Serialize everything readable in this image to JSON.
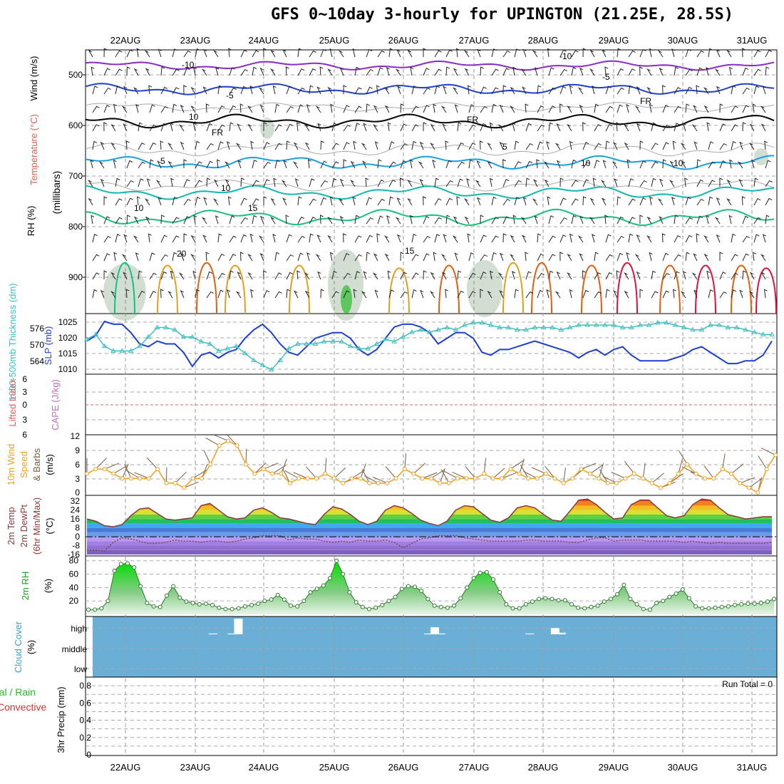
{
  "title": "GFS 0~10day 3-hourly for UPINGTON (21.25E, 28.5S)",
  "dates": [
    "22AUG",
    "23AUG",
    "24AUG",
    "25AUG",
    "26AUG",
    "27AUG",
    "28AUG",
    "29AUG",
    "30AUG",
    "31AUG"
  ],
  "colors": {
    "temp_minus10": "#8a2bc8",
    "temp_minus5": "#2040d0",
    "freezing": "#000000",
    "temp_5": "#1aa0e0",
    "temp_10": "#12b8b0",
    "temp_15": "#18c080",
    "temp_20": "#e0a020",
    "temp_25": "#e06010",
    "temp_30": "#e01040",
    "slp": "#1f3fd0",
    "thickness": "#3fbfc0",
    "wind_speed": "#f0a020",
    "wind_barb": "#7a5a40",
    "temp2m": "#8b3a3a",
    "dewpt": "#7a4a4a",
    "rh_fill": "#20c020",
    "cloud_bg": "#6baed6",
    "lifted_index": "#e06060"
  },
  "panels": {
    "upper": {
      "ylabel_wind": "Wind (m/s)",
      "ylabel_temp": "Temperature (°C)",
      "ylabel_rh": "RH (%)",
      "ylabel_mb": "(millibars)",
      "yticks": [
        "500",
        "600",
        "700",
        "800",
        "900"
      ],
      "contour_labels": [
        "-10",
        "-10",
        "-5",
        "-5",
        "FR",
        "FR",
        "FR",
        "5",
        "5",
        "10",
        "10",
        "15",
        "15",
        "20",
        "10",
        "10",
        "10"
      ]
    },
    "slp": {
      "ylabel_left": "1000-500mb Thickness (dm)",
      "ylabel_right": "SLP (mb)",
      "left_ticks": [
        "576",
        "570",
        "564"
      ],
      "right_ticks": [
        "1025",
        "1020",
        "1015",
        "1010"
      ]
    },
    "li": {
      "ylabel_left": "Lifted Index",
      "ylabel_right": "CAPE (J/kg)",
      "ticks": [
        "-6",
        "-3",
        "0",
        "3",
        "6"
      ]
    },
    "wind": {
      "ylabel_left": "10m Wind",
      "ylabel_left2": "Speed",
      "ylabel_right": "& Barbs",
      "ylabel_unit": "(m/s)",
      "ticks": [
        "12",
        "9",
        "6",
        "3",
        "0"
      ]
    },
    "temp": {
      "ylabel1": "2m Temp",
      "ylabel2": "2m DewPt",
      "ylabel3": "(6hr Min/Max)",
      "ylabel_unit": "(°C)",
      "ticks": [
        "32",
        "24",
        "16",
        "8",
        "0",
        "-8",
        "-16"
      ]
    },
    "rh": {
      "ylabel": "2m RH",
      "ylabel_unit": "(%)",
      "ticks": [
        "80",
        "60",
        "40",
        "20"
      ]
    },
    "cloud": {
      "ylabel": "Cloud Cover",
      "ylabel_unit": "(%)",
      "ticks": [
        "high",
        "middle",
        "low"
      ]
    },
    "precip": {
      "ylabel_left1": "Total / Rain",
      "ylabel_left2": "Convective",
      "ylabel_right": "3hr Precip (mm)",
      "ticks": [
        "0.8",
        "0.6",
        "0.4",
        "0.2",
        "0"
      ],
      "run_total": "Run Total = 0"
    }
  },
  "chart_data": [
    {
      "type": "line",
      "name": "slp",
      "ylabel": "SLP (mb)",
      "ylim": [
        1008,
        1028
      ],
      "values": [
        1019,
        1021,
        1026,
        1025,
        1025,
        1022,
        1018,
        1017,
        1019,
        1018,
        1018,
        1015,
        1010,
        1014,
        1015,
        1013,
        1015,
        1016,
        1020,
        1023,
        1025,
        1022,
        1018,
        1015,
        1014,
        1017,
        1020,
        1021,
        1022,
        1022,
        1020,
        1016,
        1014,
        1016,
        1020,
        1024,
        1025,
        1025,
        1024,
        1022,
        1018,
        1020,
        1022,
        1022,
        1020,
        1015,
        1014,
        1016,
        1016,
        1017,
        1018,
        1019,
        1018,
        1017,
        1016,
        1015,
        1013,
        1015,
        1016,
        1014,
        1016,
        1017,
        1014,
        1012,
        1012,
        1012,
        1012,
        1013,
        1014,
        1016,
        1017,
        1015,
        1013,
        1011,
        1011,
        1012,
        1012,
        1014,
        1019
      ]
    },
    {
      "type": "line",
      "name": "thickness",
      "ylabel": "1000-500mb Thickness (dm)",
      "values": [
        570,
        572,
        567,
        565,
        565,
        565,
        567,
        571,
        575,
        575,
        574,
        571,
        571,
        569,
        568,
        565,
        566,
        567,
        564,
        561,
        559,
        557,
        561,
        566,
        568,
        568,
        568,
        569,
        569,
        569,
        567,
        566,
        566,
        568,
        570,
        569,
        571,
        573,
        574,
        573,
        574,
        575,
        574,
        576,
        577,
        577,
        576,
        575,
        575,
        574,
        574,
        575,
        575,
        575,
        574,
        575,
        576,
        576,
        576,
        576,
        576,
        575,
        575,
        576,
        576,
        577,
        577,
        576,
        575,
        574,
        574,
        576,
        576,
        575,
        575,
        574,
        573,
        572,
        572
      ]
    },
    {
      "type": "line",
      "name": "wind_speed",
      "ylabel": "10m Wind Speed (m/s)",
      "ylim": [
        0,
        12
      ],
      "values": [
        4,
        5,
        5,
        4,
        3,
        3,
        3,
        3,
        5,
        2,
        2,
        1,
        3,
        3,
        6,
        10,
        11,
        10,
        6,
        4,
        5,
        4,
        4,
        2,
        3,
        3,
        3,
        4,
        3,
        2,
        3,
        3,
        2,
        2,
        2,
        3,
        5,
        4,
        3,
        3,
        2,
        2,
        3,
        3,
        3,
        4,
        3,
        3,
        5,
        4,
        3,
        3,
        4,
        3,
        2,
        3,
        5,
        4,
        3,
        2,
        2,
        3,
        4,
        3,
        2,
        1,
        2,
        4,
        6,
        4,
        3,
        3,
        5,
        4,
        2,
        1,
        0,
        5,
        8
      ]
    },
    {
      "type": "area",
      "name": "temp2m",
      "ylabel": "2m Temp (°C)",
      "ylim": [
        -16,
        36
      ],
      "values": [
        16,
        14,
        10,
        9,
        11,
        19,
        25,
        26,
        21,
        16,
        15,
        16,
        17,
        28,
        30,
        24,
        18,
        16,
        17,
        24,
        26,
        22,
        17,
        16,
        14,
        12,
        11,
        20,
        27,
        25,
        20,
        14,
        11,
        14,
        24,
        28,
        26,
        21,
        15,
        12,
        10,
        14,
        24,
        28,
        27,
        21,
        15,
        13,
        17,
        26,
        28,
        26,
        20,
        15,
        14,
        23,
        33,
        34,
        29,
        22,
        16,
        17,
        29,
        33,
        33,
        26,
        19,
        17,
        19,
        29,
        34,
        33,
        26,
        20,
        18,
        16,
        17,
        18,
        18
      ]
    },
    {
      "type": "line",
      "name": "dewpt",
      "ylabel": "2m DewPt (°C)",
      "values": [
        -12,
        -12,
        -13,
        -5,
        -1,
        -2,
        -4,
        -6,
        -6,
        -5,
        -3,
        -4,
        -4,
        -5,
        -4,
        -4,
        -5,
        -4,
        -2,
        -1,
        1,
        1,
        1,
        -3,
        -1,
        -2,
        -2,
        -4,
        -5,
        -4,
        -5,
        -3,
        -4,
        -4,
        -3,
        -5,
        -10,
        -6,
        -2,
        -1,
        1,
        1,
        1,
        -1,
        -2,
        -3,
        -4,
        -4,
        -4,
        -4,
        -3,
        -3,
        -4,
        -4,
        -4,
        -5,
        -5,
        -3,
        -1,
        -1,
        -4,
        -3,
        -3,
        -3,
        -4,
        -4,
        -4,
        -4,
        -5,
        -4,
        -5,
        -6,
        -5,
        -6,
        -6,
        -6,
        -6,
        -6,
        -5
      ]
    },
    {
      "type": "area",
      "name": "rh2m",
      "ylabel": "2m RH (%)",
      "ylim": [
        0,
        85
      ],
      "values": [
        7,
        7,
        9,
        20,
        65,
        75,
        76,
        70,
        42,
        17,
        12,
        11,
        28,
        42,
        25,
        19,
        17,
        15,
        16,
        14,
        10,
        8,
        8,
        9,
        12,
        14,
        16,
        20,
        22,
        29,
        22,
        13,
        12,
        20,
        33,
        38,
        43,
        54,
        80,
        60,
        33,
        18,
        11,
        8,
        10,
        14,
        20,
        26,
        38,
        42,
        41,
        35,
        23,
        13,
        11,
        10,
        13,
        24,
        40,
        54,
        62,
        63,
        52,
        33,
        15,
        9,
        9,
        15,
        19,
        23,
        24,
        23,
        21,
        21,
        15,
        10,
        9,
        11,
        13,
        19,
        23,
        30,
        44,
        23,
        15,
        8,
        7,
        17,
        20,
        26,
        31,
        37,
        24,
        12,
        9,
        9,
        10,
        11,
        12,
        14,
        15,
        16,
        16,
        17,
        19,
        23
      ]
    },
    {
      "type": "bar",
      "name": "cloud_high",
      "ylabel": "Cloud Cover (%)",
      "values": [
        0,
        0,
        0,
        0,
        0,
        0,
        0,
        0,
        0,
        0,
        0,
        0,
        0,
        0,
        0,
        0,
        0,
        0,
        0,
        5,
        0,
        0,
        5,
        100,
        0,
        0,
        0,
        0,
        0,
        0,
        0,
        0,
        0,
        0,
        0,
        0,
        0,
        0,
        0,
        0,
        0,
        0,
        0,
        0,
        0,
        0,
        0,
        0,
        0,
        0,
        0,
        0,
        0,
        5,
        45,
        5,
        0,
        0,
        0,
        0,
        0,
        0,
        0,
        0,
        0,
        0,
        0,
        0,
        0,
        5,
        0,
        0,
        0,
        40,
        10,
        0,
        0,
        0,
        0,
        0,
        0,
        0,
        0,
        0,
        0,
        0,
        0,
        0,
        0,
        0,
        0,
        0,
        0,
        0,
        0,
        0,
        0,
        0,
        0,
        0,
        0,
        0,
        0,
        0,
        0,
        0,
        0,
        0,
        0
      ]
    },
    {
      "type": "bar",
      "name": "precip",
      "ylabel": "3hr Precip (mm)",
      "ylim": [
        0,
        0.9
      ],
      "values": []
    }
  ]
}
